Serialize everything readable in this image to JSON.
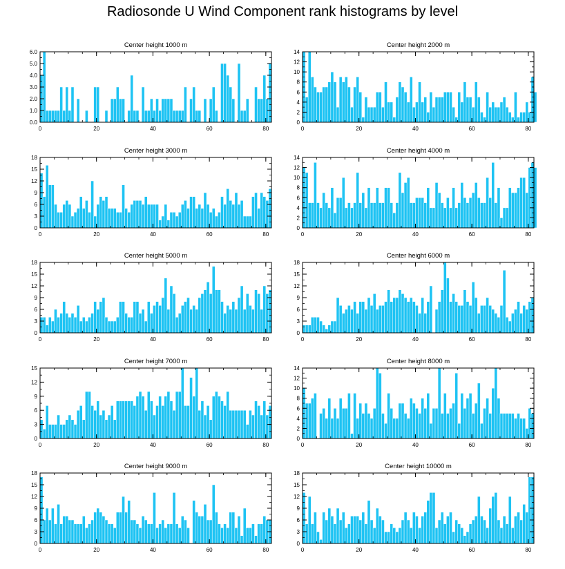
{
  "title": "Radiosonde U Wind Component rank histograms by level",
  "colors": {
    "bar": "#1EC3F3",
    "bar_edge": "#FFFFFF",
    "axis": "#000000"
  },
  "chart_data": [
    {
      "type": "bar",
      "title": "Center height 1000 m",
      "xlabel": "",
      "ylabel": "",
      "xlim": [
        0,
        82
      ],
      "ylim": [
        0,
        6
      ],
      "yticks": [
        0,
        1,
        2,
        3,
        4,
        5,
        6
      ],
      "ytick_labels": [
        "0.0",
        "1.0",
        "2.0",
        "3.0",
        "4.0",
        "5.0",
        "6.0"
      ],
      "xticks": [
        0,
        20,
        40,
        60,
        80
      ],
      "xtick_labels": [
        "0",
        "20",
        "40",
        "60",
        "80"
      ],
      "values": [
        4,
        6,
        1,
        1,
        1,
        1,
        1,
        3,
        1,
        3,
        1,
        3,
        0,
        2,
        0,
        0,
        1,
        0,
        0,
        3,
        3,
        0,
        0,
        1,
        0,
        2,
        2,
        3,
        2,
        2,
        0,
        1,
        4,
        1,
        1,
        0,
        3,
        1,
        1,
        2,
        1,
        2,
        1,
        2,
        2,
        2,
        2,
        1,
        1,
        1,
        1,
        3,
        0,
        2,
        3,
        1,
        1,
        0,
        2,
        0,
        2,
        3,
        1,
        0,
        5,
        5,
        4,
        3,
        2,
        0,
        5,
        1,
        1,
        2,
        0,
        0,
        3,
        2,
        2,
        4,
        2,
        5
      ]
    },
    {
      "type": "bar",
      "title": "Center height 2000 m",
      "xlabel": "",
      "ylabel": "",
      "xlim": [
        0,
        82
      ],
      "ylim": [
        0,
        14
      ],
      "yticks": [
        0,
        2,
        4,
        6,
        8,
        10,
        12,
        14
      ],
      "ytick_labels": [
        "0",
        "2",
        "4",
        "6",
        "8",
        "10",
        "12",
        "14"
      ],
      "xticks": [
        0,
        20,
        40,
        60,
        80
      ],
      "xtick_labels": [
        "0",
        "20",
        "40",
        "60",
        "80"
      ],
      "values": [
        14,
        5,
        14,
        9,
        7,
        6,
        6,
        7,
        7,
        8,
        10,
        8,
        3,
        9,
        8,
        9,
        7,
        3,
        7,
        9,
        6,
        1,
        5,
        3,
        3,
        3,
        6,
        6,
        3,
        8,
        4,
        4,
        1,
        5,
        8,
        7,
        6,
        4,
        9,
        3,
        4,
        8,
        4,
        5,
        2,
        6,
        3,
        5,
        5,
        5,
        6,
        6,
        6,
        3,
        1,
        6,
        4,
        8,
        5,
        5,
        3,
        8,
        5,
        2,
        1,
        6,
        3,
        4,
        3,
        3,
        4,
        5,
        3,
        2,
        1,
        6,
        1,
        2,
        2,
        4,
        2,
        9,
        6
      ]
    },
    {
      "type": "bar",
      "title": "Center height 3000 m",
      "xlabel": "",
      "ylabel": "",
      "xlim": [
        0,
        82
      ],
      "ylim": [
        0,
        18
      ],
      "yticks": [
        0,
        3,
        6,
        9,
        12,
        15,
        18
      ],
      "ytick_labels": [
        "0",
        "3",
        "6",
        "9",
        "12",
        "15",
        "18"
      ],
      "xticks": [
        0,
        20,
        40,
        60,
        80
      ],
      "xtick_labels": [
        "0",
        "20",
        "40",
        "60",
        "80"
      ],
      "values": [
        14,
        8,
        16,
        11,
        11,
        6,
        4,
        4,
        6,
        7,
        6,
        3,
        4,
        5,
        8,
        5,
        7,
        4,
        12,
        3,
        6,
        8,
        7,
        8,
        5,
        5,
        5,
        4,
        4,
        11,
        5,
        4,
        6,
        7,
        7,
        7,
        6,
        8,
        6,
        6,
        6,
        6,
        2,
        3,
        6,
        2,
        4,
        4,
        3,
        4,
        6,
        7,
        5,
        8,
        8,
        5,
        6,
        5,
        9,
        6,
        4,
        5,
        3,
        4,
        8,
        6,
        10,
        7,
        6,
        9,
        6,
        7,
        3,
        3,
        3,
        8,
        9,
        5,
        9,
        8,
        7,
        10
      ]
    },
    {
      "type": "bar",
      "title": "Center height 4000 m",
      "xlabel": "",
      "ylabel": "",
      "xlim": [
        0,
        82
      ],
      "ylim": [
        0,
        14
      ],
      "yticks": [
        0,
        2,
        4,
        6,
        8,
        10,
        12,
        14
      ],
      "ytick_labels": [
        "0",
        "2",
        "4",
        "6",
        "8",
        "10",
        "12",
        "14"
      ],
      "xticks": [
        0,
        20,
        40,
        60,
        80
      ],
      "xtick_labels": [
        "0",
        "20",
        "40",
        "60",
        "80"
      ],
      "values": [
        12,
        11,
        5,
        5,
        13,
        5,
        4,
        7,
        5,
        4,
        8,
        3,
        6,
        6,
        10,
        4,
        5,
        4,
        5,
        11,
        5,
        7,
        4,
        8,
        5,
        5,
        8,
        5,
        5,
        8,
        8,
        5,
        3,
        5,
        11,
        7,
        9,
        10,
        5,
        5,
        6,
        6,
        6,
        5,
        8,
        4,
        4,
        9,
        7,
        5,
        4,
        6,
        4,
        8,
        4,
        5,
        9,
        6,
        5,
        6,
        7,
        9,
        6,
        5,
        5,
        10,
        6,
        13,
        5,
        8,
        2,
        4,
        4,
        8,
        7,
        7,
        8,
        10,
        10,
        7,
        12,
        13,
        12
      ]
    },
    {
      "type": "bar",
      "title": "Center height 5000 m",
      "xlabel": "",
      "ylabel": "",
      "xlim": [
        0,
        82
      ],
      "ylim": [
        0,
        18
      ],
      "yticks": [
        0,
        3,
        6,
        9,
        12,
        15,
        18
      ],
      "ytick_labels": [
        "0",
        "3",
        "6",
        "9",
        "12",
        "15",
        "18"
      ],
      "xticks": [
        0,
        20,
        40,
        60,
        80
      ],
      "xtick_labels": [
        "0",
        "20",
        "40",
        "60",
        "80"
      ],
      "values": [
        4,
        4,
        2,
        4,
        3,
        6,
        4,
        5,
        8,
        5,
        4,
        5,
        4,
        7,
        3,
        4,
        3,
        4,
        5,
        8,
        6,
        8,
        9,
        4,
        3,
        3,
        3,
        4,
        8,
        8,
        5,
        4,
        4,
        8,
        8,
        5,
        6,
        3,
        8,
        5,
        7,
        8,
        7,
        9,
        14,
        6,
        12,
        10,
        4,
        5,
        7,
        8,
        9,
        6,
        7,
        6,
        9,
        10,
        11,
        13,
        10,
        17,
        11,
        11,
        8,
        5,
        7,
        6,
        8,
        6,
        9,
        12,
        6,
        10,
        7,
        6,
        11,
        10,
        6,
        12,
        10,
        11
      ]
    },
    {
      "type": "bar",
      "title": "Center height 6000 m",
      "xlabel": "",
      "ylabel": "",
      "xlim": [
        0,
        82
      ],
      "ylim": [
        0,
        18
      ],
      "yticks": [
        0,
        3,
        6,
        9,
        12,
        15,
        18
      ],
      "ytick_labels": [
        "0",
        "3",
        "6",
        "9",
        "12",
        "15",
        "18"
      ],
      "xticks": [
        0,
        20,
        40,
        60,
        80
      ],
      "xtick_labels": [
        "0",
        "20",
        "40",
        "60",
        "80"
      ],
      "values": [
        2,
        2,
        2,
        4,
        4,
        4,
        3,
        2,
        1,
        2,
        3,
        3,
        9,
        7,
        5,
        6,
        7,
        6,
        8,
        5,
        8,
        8,
        6,
        9,
        7,
        10,
        6,
        7,
        7,
        8,
        11,
        8,
        9,
        9,
        11,
        10,
        9,
        8,
        9,
        8,
        7,
        5,
        9,
        5,
        8,
        12,
        0,
        6,
        8,
        11,
        18,
        14,
        8,
        10,
        8,
        7,
        7,
        11,
        8,
        7,
        13,
        9,
        5,
        7,
        7,
        9,
        7,
        6,
        5,
        4,
        7,
        16,
        4,
        3,
        5,
        6,
        8,
        5,
        7,
        6,
        8,
        9
      ]
    },
    {
      "type": "bar",
      "title": "Center height 7000 m",
      "xlabel": "",
      "ylabel": "",
      "xlim": [
        0,
        82
      ],
      "ylim": [
        0,
        15
      ],
      "yticks": [
        0,
        3,
        6,
        9,
        12,
        15
      ],
      "ytick_labels": [
        "0",
        "3",
        "6",
        "9",
        "12",
        "15"
      ],
      "xticks": [
        0,
        20,
        40,
        60,
        80
      ],
      "xtick_labels": [
        "0",
        "20",
        "40",
        "60",
        "80"
      ],
      "values": [
        4,
        2,
        7,
        3,
        3,
        3,
        5,
        3,
        3,
        4,
        5,
        4,
        3,
        6,
        7,
        4,
        10,
        10,
        7,
        6,
        8,
        5,
        6,
        4,
        5,
        7,
        4,
        8,
        8,
        8,
        8,
        8,
        8,
        7,
        9,
        10,
        9,
        6,
        10,
        8,
        5,
        7,
        9,
        7,
        9,
        10,
        8,
        6,
        10,
        10,
        15,
        7,
        7,
        13,
        9,
        15,
        6,
        8,
        5,
        7,
        4,
        9,
        10,
        9,
        8,
        7,
        10,
        6,
        6,
        6,
        6,
        6,
        6,
        3,
        6,
        5,
        8,
        7,
        5,
        8,
        5,
        7
      ]
    },
    {
      "type": "bar",
      "title": "Center height 8000 m",
      "xlabel": "",
      "ylabel": "",
      "xlim": [
        0,
        82
      ],
      "ylim": [
        0,
        14
      ],
      "yticks": [
        0,
        2,
        4,
        6,
        8,
        10,
        12,
        14
      ],
      "ytick_labels": [
        "0",
        "2",
        "4",
        "6",
        "8",
        "10",
        "12",
        "14"
      ],
      "xticks": [
        0,
        20,
        40,
        60,
        80
      ],
      "xtick_labels": [
        "0",
        "20",
        "40",
        "60",
        "80"
      ],
      "values": [
        10,
        7,
        7,
        8,
        9,
        0,
        5,
        6,
        4,
        8,
        4,
        6,
        4,
        8,
        6,
        6,
        9,
        1,
        9,
        4,
        7,
        5,
        7,
        5,
        4,
        6,
        14,
        13,
        5,
        3,
        9,
        6,
        4,
        4,
        7,
        7,
        5,
        4,
        8,
        7,
        6,
        5,
        8,
        6,
        9,
        3,
        6,
        6,
        14,
        5,
        9,
        5,
        6,
        7,
        13,
        3,
        9,
        6,
        8,
        9,
        5,
        7,
        11,
        3,
        6,
        8,
        5,
        10,
        14,
        8,
        5,
        5,
        5,
        5,
        5,
        4,
        5,
        4,
        4,
        2,
        6,
        5
      ]
    },
    {
      "type": "bar",
      "title": "Center height 9000 m",
      "xlabel": "",
      "ylabel": "",
      "xlim": [
        0,
        82
      ],
      "ylim": [
        0,
        18
      ],
      "yticks": [
        0,
        3,
        6,
        9,
        12,
        15,
        18
      ],
      "ytick_labels": [
        "0",
        "3",
        "6",
        "9",
        "12",
        "15",
        "18"
      ],
      "xticks": [
        0,
        20,
        40,
        60,
        80
      ],
      "xtick_labels": [
        "0",
        "20",
        "40",
        "60",
        "80"
      ],
      "values": [
        17,
        6,
        9,
        6,
        9,
        5,
        10,
        5,
        7,
        7,
        6,
        6,
        5,
        5,
        5,
        7,
        4,
        5,
        6,
        8,
        9,
        8,
        7,
        6,
        5,
        5,
        4,
        8,
        8,
        12,
        8,
        11,
        6,
        6,
        5,
        4,
        7,
        6,
        5,
        5,
        13,
        4,
        5,
        6,
        4,
        5,
        5,
        13,
        5,
        4,
        7,
        6,
        4,
        0,
        11,
        8,
        7,
        7,
        10,
        6,
        6,
        15,
        8,
        5,
        4,
        5,
        4,
        8,
        8,
        4,
        7,
        2,
        9,
        4,
        4,
        5,
        2,
        5,
        5,
        7,
        6,
        6
      ]
    },
    {
      "type": "bar",
      "title": "Center height 10000 m",
      "xlabel": "",
      "ylabel": "",
      "xlim": [
        0,
        82
      ],
      "ylim": [
        0,
        18
      ],
      "yticks": [
        0,
        3,
        6,
        9,
        12,
        15,
        18
      ],
      "ytick_labels": [
        "0",
        "3",
        "6",
        "9",
        "12",
        "15",
        "18"
      ],
      "xticks": [
        0,
        20,
        40,
        60,
        80
      ],
      "xtick_labels": [
        "0",
        "20",
        "40",
        "60",
        "80"
      ],
      "values": [
        13,
        5,
        12,
        5,
        8,
        3,
        1,
        8,
        6,
        9,
        7,
        5,
        9,
        6,
        8,
        4,
        5,
        7,
        7,
        7,
        6,
        8,
        5,
        11,
        6,
        4,
        9,
        7,
        6,
        3,
        3,
        5,
        4,
        3,
        4,
        6,
        8,
        6,
        4,
        8,
        7,
        4,
        7,
        8,
        11,
        13,
        13,
        4,
        6,
        8,
        5,
        7,
        8,
        3,
        6,
        5,
        4,
        2,
        3,
        5,
        6,
        7,
        12,
        7,
        6,
        4,
        9,
        12,
        13,
        6,
        4,
        7,
        5,
        12,
        4,
        7,
        8,
        6,
        10,
        8,
        17,
        17
      ]
    }
  ]
}
